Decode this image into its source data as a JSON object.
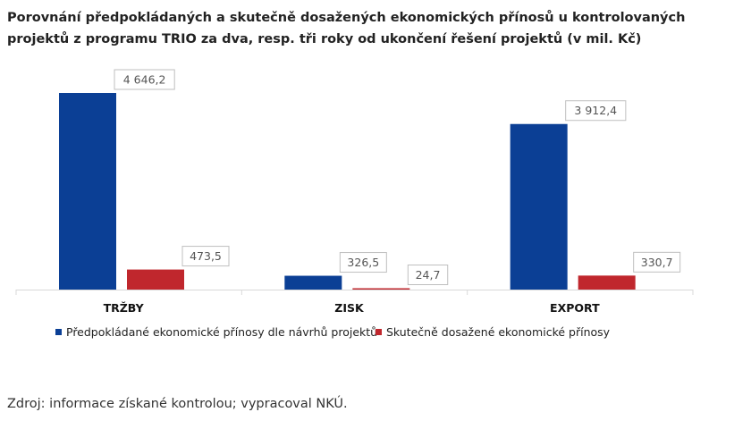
{
  "title": "Porovnání předpokládaných a skutečně dosažených ekonomických přínosů u kontrolovaných projektů z programu TRIO za dva, resp. tři roky od ukončení řešení projektů (v mil. Kč)",
  "source": "Zdroj: informace získané kontrolou; vypracoval NKÚ.",
  "colors": {
    "expected": "#0b3f95",
    "actual": "#c0272d",
    "axis": "#d9d9d9",
    "label_border": "#bfbfbf"
  },
  "chart_data": {
    "type": "bar",
    "title": "Porovnání předpokládaných a skutečně dosažených ekonomických přínosů u kontrolovaných projektů z programu TRIO za dva, resp. tři roky od ukončení řešení projektů (v mil. Kč)",
    "categories": [
      "TRŽBY",
      "ZISK",
      "EXPORT"
    ],
    "series": [
      {
        "name": "Předpokládané ekonomické přínosy dle návrhů projektů",
        "values": [
          4646.2,
          326.5,
          3912.4
        ],
        "labels": [
          "4 646,2",
          "326,5",
          "3 912,4"
        ]
      },
      {
        "name": "Skutečně dosažené ekonomické přínosy",
        "values": [
          473.5,
          24.7,
          330.7
        ],
        "labels": [
          "473,5",
          "24,7",
          "330,7"
        ]
      }
    ],
    "xlabel": "",
    "ylabel": "",
    "ylim": [
      0,
      4646.2
    ],
    "grid": false,
    "legend": "bottom"
  }
}
